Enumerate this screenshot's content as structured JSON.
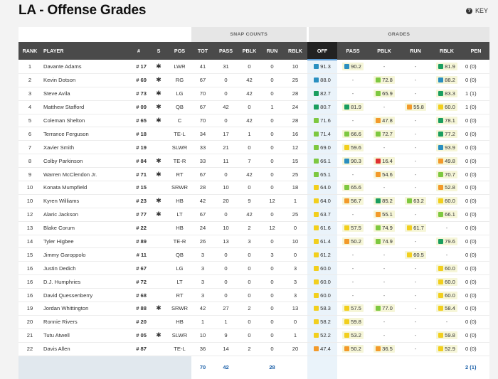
{
  "title": "LA - Offense Grades",
  "key_label": "KEY",
  "key_icon": "help-circle-icon",
  "groups": {
    "snap": "SNAP COUNTS",
    "grades": "GRADES"
  },
  "columns": [
    "RANK",
    "PLAYER",
    "#",
    "S",
    "POS",
    "TOT",
    "PASS",
    "PBLK",
    "RUN",
    "RBLK",
    "OFF",
    "PASS",
    "PBLK",
    "RUN",
    "RBLK",
    "PEN"
  ],
  "grade_colors": {
    "dark_green": "#1a9e5f",
    "green": "#7ec840",
    "yellow": "#f2cf1d",
    "orange": "#f39a2a",
    "red": "#e03131",
    "blue": "#2a8fc0"
  },
  "rows": [
    {
      "rank": "1",
      "player": "Davante Adams",
      "num": "# 17",
      "star": "✱",
      "pos": "LWR",
      "tot": "41",
      "pass": "31",
      "pblk": "0",
      "run": "0",
      "rblk": "10",
      "off": "91.3",
      "off_c": "blue",
      "gpass": "90.2",
      "gpass_c": "blue",
      "gpblk": "-",
      "gpblk_c": "",
      "grun": "-",
      "grun_c": "",
      "grblk": "81.9",
      "grblk_c": "dark_green",
      "pen": "0 (0)"
    },
    {
      "rank": "2",
      "player": "Kevin Dotson",
      "num": "# 69",
      "star": "✱",
      "pos": "RG",
      "tot": "67",
      "pass": "0",
      "pblk": "42",
      "run": "0",
      "rblk": "25",
      "off": "88.0",
      "off_c": "blue",
      "gpass": "-",
      "gpass_c": "",
      "gpblk": "72.8",
      "gpblk_c": "green",
      "grun": "-",
      "grun_c": "",
      "grblk": "88.2",
      "grblk_c": "blue",
      "pen": "0 (0)"
    },
    {
      "rank": "3",
      "player": "Steve Avila",
      "num": "# 73",
      "star": "✱",
      "pos": "LG",
      "tot": "70",
      "pass": "0",
      "pblk": "42",
      "run": "0",
      "rblk": "28",
      "off": "82.7",
      "off_c": "dark_green",
      "gpass": "-",
      "gpass_c": "",
      "gpblk": "65.9",
      "gpblk_c": "green",
      "grun": "-",
      "grun_c": "",
      "grblk": "83.3",
      "grblk_c": "dark_green",
      "pen": "1 (1)"
    },
    {
      "rank": "4",
      "player": "Matthew Stafford",
      "num": "# 09",
      "star": "✱",
      "pos": "QB",
      "tot": "67",
      "pass": "42",
      "pblk": "0",
      "run": "1",
      "rblk": "24",
      "off": "80.7",
      "off_c": "dark_green",
      "gpass": "81.9",
      "gpass_c": "dark_green",
      "gpblk": "-",
      "gpblk_c": "",
      "grun": "55.8",
      "grun_c": "orange",
      "grblk": "60.0",
      "grblk_c": "yellow",
      "pen": "1 (0)"
    },
    {
      "rank": "5",
      "player": "Coleman Shelton",
      "num": "# 65",
      "star": "✱",
      "pos": "C",
      "tot": "70",
      "pass": "0",
      "pblk": "42",
      "run": "0",
      "rblk": "28",
      "off": "71.6",
      "off_c": "green",
      "gpass": "-",
      "gpass_c": "",
      "gpblk": "47.8",
      "gpblk_c": "orange",
      "grun": "-",
      "grun_c": "",
      "grblk": "78.1",
      "grblk_c": "dark_green",
      "pen": "0 (0)"
    },
    {
      "rank": "6",
      "player": "Terrance Ferguson",
      "num": "# 18",
      "star": "",
      "pos": "TE-L",
      "tot": "34",
      "pass": "17",
      "pblk": "1",
      "run": "0",
      "rblk": "16",
      "off": "71.4",
      "off_c": "green",
      "gpass": "66.6",
      "gpass_c": "green",
      "gpblk": "72.7",
      "gpblk_c": "green",
      "grun": "-",
      "grun_c": "",
      "grblk": "77.2",
      "grblk_c": "dark_green",
      "pen": "0 (0)"
    },
    {
      "rank": "7",
      "player": "Xavier Smith",
      "num": "# 19",
      "star": "",
      "pos": "SLWR",
      "tot": "33",
      "pass": "21",
      "pblk": "0",
      "run": "0",
      "rblk": "12",
      "off": "69.0",
      "off_c": "green",
      "gpass": "59.6",
      "gpass_c": "yellow",
      "gpblk": "-",
      "gpblk_c": "",
      "grun": "-",
      "grun_c": "",
      "grblk": "93.9",
      "grblk_c": "blue",
      "pen": "0 (0)"
    },
    {
      "rank": "8",
      "player": "Colby Parkinson",
      "num": "# 84",
      "star": "✱",
      "pos": "TE-R",
      "tot": "33",
      "pass": "11",
      "pblk": "7",
      "run": "0",
      "rblk": "15",
      "off": "66.1",
      "off_c": "green",
      "gpass": "90.3",
      "gpass_c": "blue",
      "gpblk": "16.4",
      "gpblk_c": "red",
      "grun": "-",
      "grun_c": "",
      "grblk": "49.8",
      "grblk_c": "orange",
      "pen": "0 (0)"
    },
    {
      "rank": "9",
      "player": "Warren McClendon Jr.",
      "num": "# 71",
      "star": "✱",
      "pos": "RT",
      "tot": "67",
      "pass": "0",
      "pblk": "42",
      "run": "0",
      "rblk": "25",
      "off": "65.1",
      "off_c": "green",
      "gpass": "-",
      "gpass_c": "",
      "gpblk": "54.6",
      "gpblk_c": "orange",
      "grun": "-",
      "grun_c": "",
      "grblk": "70.7",
      "grblk_c": "green",
      "pen": "0 (0)"
    },
    {
      "rank": "10",
      "player": "Konata Mumpfield",
      "num": "# 15",
      "star": "",
      "pos": "SRWR",
      "tot": "28",
      "pass": "10",
      "pblk": "0",
      "run": "0",
      "rblk": "18",
      "off": "64.0",
      "off_c": "yellow",
      "gpass": "65.6",
      "gpass_c": "green",
      "gpblk": "-",
      "gpblk_c": "",
      "grun": "-",
      "grun_c": "",
      "grblk": "52.8",
      "grblk_c": "orange",
      "pen": "0 (0)"
    },
    {
      "rank": "10",
      "player": "Kyren Williams",
      "num": "# 23",
      "star": "✱",
      "pos": "HB",
      "tot": "42",
      "pass": "20",
      "pblk": "9",
      "run": "12",
      "rblk": "1",
      "off": "64.0",
      "off_c": "yellow",
      "gpass": "56.7",
      "gpass_c": "orange",
      "gpblk": "85.2",
      "gpblk_c": "dark_green",
      "grun": "63.2",
      "grun_c": "green",
      "grblk": "60.0",
      "grblk_c": "yellow",
      "pen": "0 (0)"
    },
    {
      "rank": "12",
      "player": "Alaric Jackson",
      "num": "# 77",
      "star": "✱",
      "pos": "LT",
      "tot": "67",
      "pass": "0",
      "pblk": "42",
      "run": "0",
      "rblk": "25",
      "off": "63.7",
      "off_c": "yellow",
      "gpass": "-",
      "gpass_c": "",
      "gpblk": "55.1",
      "gpblk_c": "orange",
      "grun": "-",
      "grun_c": "",
      "grblk": "66.1",
      "grblk_c": "green",
      "pen": "0 (0)"
    },
    {
      "rank": "13",
      "player": "Blake Corum",
      "num": "# 22",
      "star": "",
      "pos": "HB",
      "tot": "24",
      "pass": "10",
      "pblk": "2",
      "run": "12",
      "rblk": "0",
      "off": "61.6",
      "off_c": "yellow",
      "gpass": "57.5",
      "gpass_c": "yellow",
      "gpblk": "74.9",
      "gpblk_c": "green",
      "grun": "61.7",
      "grun_c": "yellow",
      "grblk": "-",
      "grblk_c": "",
      "pen": "0 (0)"
    },
    {
      "rank": "14",
      "player": "Tyler Higbee",
      "num": "# 89",
      "star": "",
      "pos": "TE-R",
      "tot": "26",
      "pass": "13",
      "pblk": "3",
      "run": "0",
      "rblk": "10",
      "off": "61.4",
      "off_c": "yellow",
      "gpass": "50.2",
      "gpass_c": "orange",
      "gpblk": "74.9",
      "gpblk_c": "green",
      "grun": "-",
      "grun_c": "",
      "grblk": "79.6",
      "grblk_c": "dark_green",
      "pen": "0 (0)"
    },
    {
      "rank": "15",
      "player": "Jimmy Garoppolo",
      "num": "# 11",
      "star": "",
      "pos": "QB",
      "tot": "3",
      "pass": "0",
      "pblk": "0",
      "run": "3",
      "rblk": "0",
      "off": "61.2",
      "off_c": "yellow",
      "gpass": "-",
      "gpass_c": "",
      "gpblk": "-",
      "gpblk_c": "",
      "grun": "60.5",
      "grun_c": "yellow",
      "grblk": "-",
      "grblk_c": "",
      "pen": "0 (0)"
    },
    {
      "rank": "16",
      "player": "Justin Dedich",
      "num": "# 67",
      "star": "",
      "pos": "LG",
      "tot": "3",
      "pass": "0",
      "pblk": "0",
      "run": "0",
      "rblk": "3",
      "off": "60.0",
      "off_c": "yellow",
      "gpass": "-",
      "gpass_c": "",
      "gpblk": "-",
      "gpblk_c": "",
      "grun": "-",
      "grun_c": "",
      "grblk": "60.0",
      "grblk_c": "yellow",
      "pen": "0 (0)"
    },
    {
      "rank": "16",
      "player": "D.J. Humphries",
      "num": "# 72",
      "star": "",
      "pos": "LT",
      "tot": "3",
      "pass": "0",
      "pblk": "0",
      "run": "0",
      "rblk": "3",
      "off": "60.0",
      "off_c": "yellow",
      "gpass": "-",
      "gpass_c": "",
      "gpblk": "-",
      "gpblk_c": "",
      "grun": "-",
      "grun_c": "",
      "grblk": "60.0",
      "grblk_c": "yellow",
      "pen": "0 (0)"
    },
    {
      "rank": "16",
      "player": "David Quessenberry",
      "num": "# 68",
      "star": "",
      "pos": "RT",
      "tot": "3",
      "pass": "0",
      "pblk": "0",
      "run": "0",
      "rblk": "3",
      "off": "60.0",
      "off_c": "yellow",
      "gpass": "-",
      "gpass_c": "",
      "gpblk": "-",
      "gpblk_c": "",
      "grun": "-",
      "grun_c": "",
      "grblk": "60.0",
      "grblk_c": "yellow",
      "pen": "0 (0)"
    },
    {
      "rank": "19",
      "player": "Jordan Whittington",
      "num": "# 88",
      "star": "✱",
      "pos": "SRWR",
      "tot": "42",
      "pass": "27",
      "pblk": "2",
      "run": "0",
      "rblk": "13",
      "off": "58.3",
      "off_c": "yellow",
      "gpass": "57.5",
      "gpass_c": "yellow",
      "gpblk": "77.0",
      "gpblk_c": "green",
      "grun": "-",
      "grun_c": "",
      "grblk": "58.4",
      "grblk_c": "yellow",
      "pen": "0 (0)"
    },
    {
      "rank": "20",
      "player": "Ronnie Rivers",
      "num": "# 20",
      "star": "",
      "pos": "HB",
      "tot": "1",
      "pass": "1",
      "pblk": "0",
      "run": "0",
      "rblk": "0",
      "off": "58.2",
      "off_c": "yellow",
      "gpass": "59.8",
      "gpass_c": "yellow",
      "gpblk": "-",
      "gpblk_c": "",
      "grun": "-",
      "grun_c": "",
      "grblk": "-",
      "grblk_c": "",
      "pen": "0 (0)"
    },
    {
      "rank": "21",
      "player": "Tutu Atwell",
      "num": "# 05",
      "star": "✱",
      "pos": "SLWR",
      "tot": "10",
      "pass": "9",
      "pblk": "0",
      "run": "0",
      "rblk": "1",
      "off": "52.2",
      "off_c": "yellow",
      "gpass": "53.2",
      "gpass_c": "yellow",
      "gpblk": "-",
      "gpblk_c": "",
      "grun": "-",
      "grun_c": "",
      "grblk": "59.8",
      "grblk_c": "yellow",
      "pen": "0 (0)"
    },
    {
      "rank": "22",
      "player": "Davis Allen",
      "num": "# 87",
      "star": "",
      "pos": "TE-L",
      "tot": "36",
      "pass": "14",
      "pblk": "2",
      "run": "0",
      "rblk": "20",
      "off": "47.4",
      "off_c": "orange",
      "gpass": "50.2",
      "gpass_c": "orange",
      "gpblk": "36.5",
      "gpblk_c": "orange",
      "grun": "-",
      "grun_c": "",
      "grblk": "52.9",
      "grblk_c": "yellow",
      "pen": "0 (0)"
    }
  ],
  "totals": {
    "tot": "70",
    "pass": "42",
    "run": "28",
    "pen": "2 (1)"
  }
}
